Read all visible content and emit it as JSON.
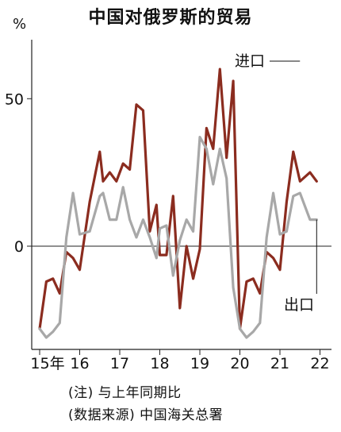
{
  "chart_data": {
    "type": "line",
    "title": "中国对俄罗斯的贸易",
    "ylabel": "%",
    "ylim": [
      -35,
      70
    ],
    "yticks": [
      0,
      50
    ],
    "x_tick_labels": [
      "15年",
      "16",
      "17",
      "18",
      "19",
      "20",
      "21",
      "22"
    ],
    "xlim": [
      "2015-01",
      "2022-01"
    ],
    "grid": false,
    "zero_line": true,
    "series": [
      {
        "name": "进口",
        "color": "#8b2c1f",
        "x": [
          "2015-01",
          "2015-03",
          "2015-05",
          "2015-07",
          "2015-09",
          "2015-11",
          "2016-01",
          "2016-04",
          "2016-07",
          "2016-08",
          "2016-10",
          "2016-12",
          "2017-02",
          "2017-04",
          "2017-06",
          "2017-08",
          "2017-10",
          "2017-12",
          "2018-01",
          "2018-03",
          "2018-05",
          "2018-07",
          "2018-09",
          "2018-11",
          "2019-01",
          "2019-03",
          "2019-05",
          "2019-07",
          "2019-09",
          "2019-11",
          "2020-01",
          "2020-03",
          "2020-05",
          "2020-07",
          "2020-09",
          "2020-11",
          "2021-01",
          "2021-03",
          "2021-05",
          "2021-07",
          "2021-10",
          "2021-12"
        ],
        "values": [
          -28,
          -12,
          -11,
          -16,
          -2,
          -4,
          -8,
          15,
          32,
          22,
          25,
          22,
          28,
          26,
          48,
          46,
          5,
          14,
          -3,
          -3,
          17,
          -21,
          0,
          -11,
          -1,
          40,
          33,
          60,
          30,
          56,
          -28,
          -12,
          -11,
          -16,
          -2,
          -4,
          -8,
          15,
          32,
          22,
          25,
          22
        ]
      },
      {
        "name": "出口",
        "color": "#a8a8a8",
        "x": [
          "2015-01",
          "2015-03",
          "2015-05",
          "2015-07",
          "2015-09",
          "2015-11",
          "2016-01",
          "2016-04",
          "2016-07",
          "2016-08",
          "2016-10",
          "2016-12",
          "2017-02",
          "2017-04",
          "2017-06",
          "2017-08",
          "2017-10",
          "2017-12",
          "2018-01",
          "2018-03",
          "2018-05",
          "2018-07",
          "2018-09",
          "2018-11",
          "2019-01",
          "2019-03",
          "2019-05",
          "2019-07",
          "2019-09",
          "2019-11",
          "2020-01",
          "2020-03",
          "2020-05",
          "2020-07",
          "2020-09",
          "2020-11",
          "2021-01",
          "2021-03",
          "2021-05",
          "2021-07",
          "2021-10",
          "2021-12"
        ],
        "values": [
          -28,
          -31,
          -29,
          -26,
          3,
          18,
          4,
          5,
          17,
          18,
          9,
          9,
          20,
          9,
          3,
          9,
          3,
          -4,
          6,
          7,
          -10,
          2,
          9,
          5,
          37,
          33,
          21,
          33,
          23,
          -14,
          -28,
          -31,
          -29,
          -26,
          3,
          18,
          4,
          5,
          17,
          18,
          9,
          9
        ]
      }
    ]
  },
  "notes": {
    "line1": "(注) 与上年同期比",
    "line2": "(数据来源) 中国海关总署"
  },
  "colors": {
    "axis": "#222222"
  }
}
